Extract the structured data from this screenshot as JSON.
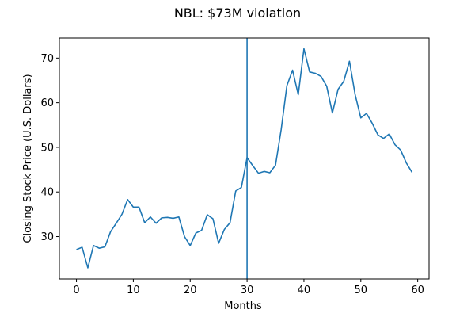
{
  "chart_data": {
    "type": "line",
    "title": "NBL: $73M violation",
    "xlabel": "Months",
    "ylabel": "Closing Stock Price (U.S. Dollars)",
    "xlim": [
      -3,
      62
    ],
    "ylim": [
      20.5,
      74.5
    ],
    "xticks": [
      0,
      10,
      20,
      30,
      40,
      50,
      60
    ],
    "yticks": [
      30,
      40,
      50,
      60,
      70
    ],
    "grid": false,
    "line_color": "#1f77b4",
    "vline": {
      "x": 30,
      "color": "#1f77b4"
    },
    "series": [
      {
        "x": [
          0,
          1,
          2,
          3,
          4,
          5,
          6,
          7,
          8,
          9,
          10,
          11,
          12,
          13,
          14,
          15,
          16,
          17,
          18,
          19,
          20,
          21,
          22,
          23,
          24,
          25,
          26,
          27,
          28,
          29,
          30,
          31,
          32,
          33,
          34,
          35,
          36,
          37,
          38,
          39,
          40,
          41,
          42,
          43,
          44,
          45,
          46,
          47,
          48,
          49,
          50,
          51,
          52,
          53,
          54,
          55,
          56,
          57,
          58,
          59
        ],
        "y": [
          27.1,
          27.6,
          23.0,
          28.0,
          27.4,
          27.7,
          31.1,
          33.0,
          35.0,
          38.3,
          36.6,
          36.6,
          33.1,
          34.4,
          33.0,
          34.2,
          34.3,
          34.1,
          34.4,
          30.0,
          28.0,
          30.8,
          31.4,
          34.9,
          34.0,
          28.5,
          31.6,
          33.1,
          40.2,
          41.0,
          47.7,
          45.9,
          44.2,
          44.6,
          44.3,
          46.0,
          54.0,
          63.8,
          67.3,
          61.8,
          72.1,
          66.9,
          66.6,
          65.9,
          63.7,
          57.7,
          63.0,
          64.8,
          69.3,
          61.8,
          56.6,
          57.6,
          55.4,
          52.8,
          52.0,
          53.0,
          50.6,
          49.4,
          46.5,
          44.4
        ]
      }
    ]
  }
}
